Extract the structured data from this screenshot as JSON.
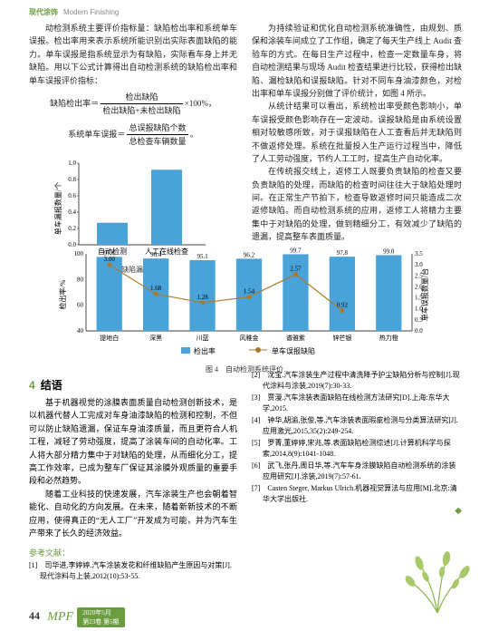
{
  "header": {
    "cn": "现代涂饰",
    "en": "Modern Finishing"
  },
  "leftCol": {
    "p1": "动检测系统主要评价指标量：缺陷检出率和系统单车误报。检出率用来表示系统所能识别出实际表面缺陷的能力。单车误报是指系统显示为有缺陷，实际看车身上并无缺陷。用以下公式计算得出自动检测系统的缺陷检出率和单车误报评价指标：",
    "f1a": "缺陷检出率＝",
    "f1b": "检出缺陷",
    "f1c": "检出缺陷+未检出缺陷",
    "f1d": "×100%，",
    "f2a": "系统单车误报＝",
    "f2b": "总误报缺陷个数",
    "f2c": "总检查车辆数量",
    "f2d": "。"
  },
  "chart3": {
    "ylabel": "单车漏报数量/个",
    "yticks": [
      "0.0",
      "0.2",
      "0.4",
      "0.6",
      "0.8",
      "1.0"
    ],
    "cats": [
      "自动检测",
      "人工在线检查"
    ],
    "values": [
      0.27,
      0.92
    ],
    "barColor": "#4aa3d8",
    "caption": "图 3　缺陷漏检统计"
  },
  "rightCol": {
    "p1": "为持续验证和优化自动检测系统准确性，由规划、质保和涂装车间成立了工作组，确定了每天生产线上 Audit 查验车的方式。在每日生产过程中，检查一定数量车身，将自动检测结果与现场 Audit 检查结果进行比较，获得检出缺陷、漏检缺陷和误报缺陷。针对不同车身油漆颜色，对检出率和单车误报分别做了评价统计，如图 4 所示。",
    "p2": "从统计结果可以看出，系统检出率受颜色影响小，单车误报受颜色影响存在一定波动。误报缺陷是由系统设置相对较敏感所致，对于误报缺陷在人工查看后并无缺陷则不做返修处理。系统在批量投入生产运行过程当中，降低了人工劳动强度，节约人工工时，提高生产自动化率。",
    "p3": "在传统报交线上，返修工人既要负责缺陷的检查又要负责缺陷的处理，而缺陷的检查时间往往大于缺陷处理时间。在正常生产节拍下，检查导致返修时间只能造成二次返修缺陷。而自动检测系统的应用，返修工人将精力主要集中于对缺陷的处理，做到精细分工，有效减少了缺陷的遗漏，提高整车表面质量。"
  },
  "chart4": {
    "ylabelL": "检出率/%",
    "ylabelR": "单车误报数量/台",
    "xcats": [
      "提地白",
      "深黑",
      "川蓝",
      "风稚金",
      "谱雅紫",
      "锌芒银",
      "热力橙"
    ],
    "yticksL": [
      "40",
      "60",
      "80",
      "100"
    ],
    "yticksR": [
      "0.0",
      "0.5",
      "1.0",
      "1.5",
      "2.0",
      "2.5",
      "3.0",
      "3.5"
    ],
    "barVals": [
      97.6,
      96.4,
      95.1,
      96.2,
      99.7,
      97.8,
      99.0
    ],
    "lineVals": [
      3.0,
      1.68,
      1.28,
      1.54,
      2.57,
      0.92,
      null
    ],
    "barColor": "#4aa3d8",
    "lineColor": "#aa7a2a",
    "legend": [
      "检出率",
      "单车误报缺陷"
    ],
    "caption": "图 4　自动检测系统评价"
  },
  "conclusion": {
    "title": "结语",
    "num": "4",
    "p1": "基于机器视觉的涂膜表面质量自动检测创新技术，是以机器代替人工完成对车身油漆缺陷的检测和控制，不但可以防止缺陷遗漏，保证车身油漆质量，而且更符合人机工程，减轻了劳动强度，提高了涂装车间的自动化率。工人将大部分精力集中于对缺陷的处理，从而细化分工，提高工作效率，已成为整车厂保证其涂膜外观质量的重要手段和必然趋势。",
    "p2": "随着工业科技的快速发展，汽车涂装生产也会朝着智能化、自动化的方向发展。在未来，随着新新技术的不断应用，使得真正的“无人工厂”开发成为可能，并为汽车生产带来了长久的经济效益。"
  },
  "refsTitle": "参考文献：",
  "refsLeft": [
    "[1]　司华进,李婷婷.汽车涂装发花和纤维缺陷产生原因与对策[J].现代涂料与上装,2012(10):53-55."
  ],
  "refsRight": [
    "[2]　沈宝.汽车涂装生产过程中清洗降予护尘缺陷分析与控制[J].现代涂料与涂装,2019(7):30-33.",
    "[3]　贾漫.汽车涂装表面缺陷在线检测方法研究[D].上海:东华大学,2015.",
    "[4]　钟华,胡渝,张俊,等.汽车涂装表面瑕疵检测与分类算法研究[J].应用激光,2015,35(2):249-254.",
    "[5]　罗菁,董婷婷,宋兆,等.表面缺陷检测综述[J].计算机科学与探索,2014,8(9):1041-1048.",
    "[6]　武飞,张丹,周日华,等.汽车车身涂膜缺陷自动检测系统的涂装应用研究[J].涂装,2019(7):57-61.",
    "[7]　Casten Steger, Markus Ulrich.机器视觉算法与应用[M].北京:清华大学出版社."
  ],
  "footer": {
    "page": "44",
    "logo": "MPF",
    "date": "2020年5月",
    "issue": "第23卷 第5期"
  }
}
